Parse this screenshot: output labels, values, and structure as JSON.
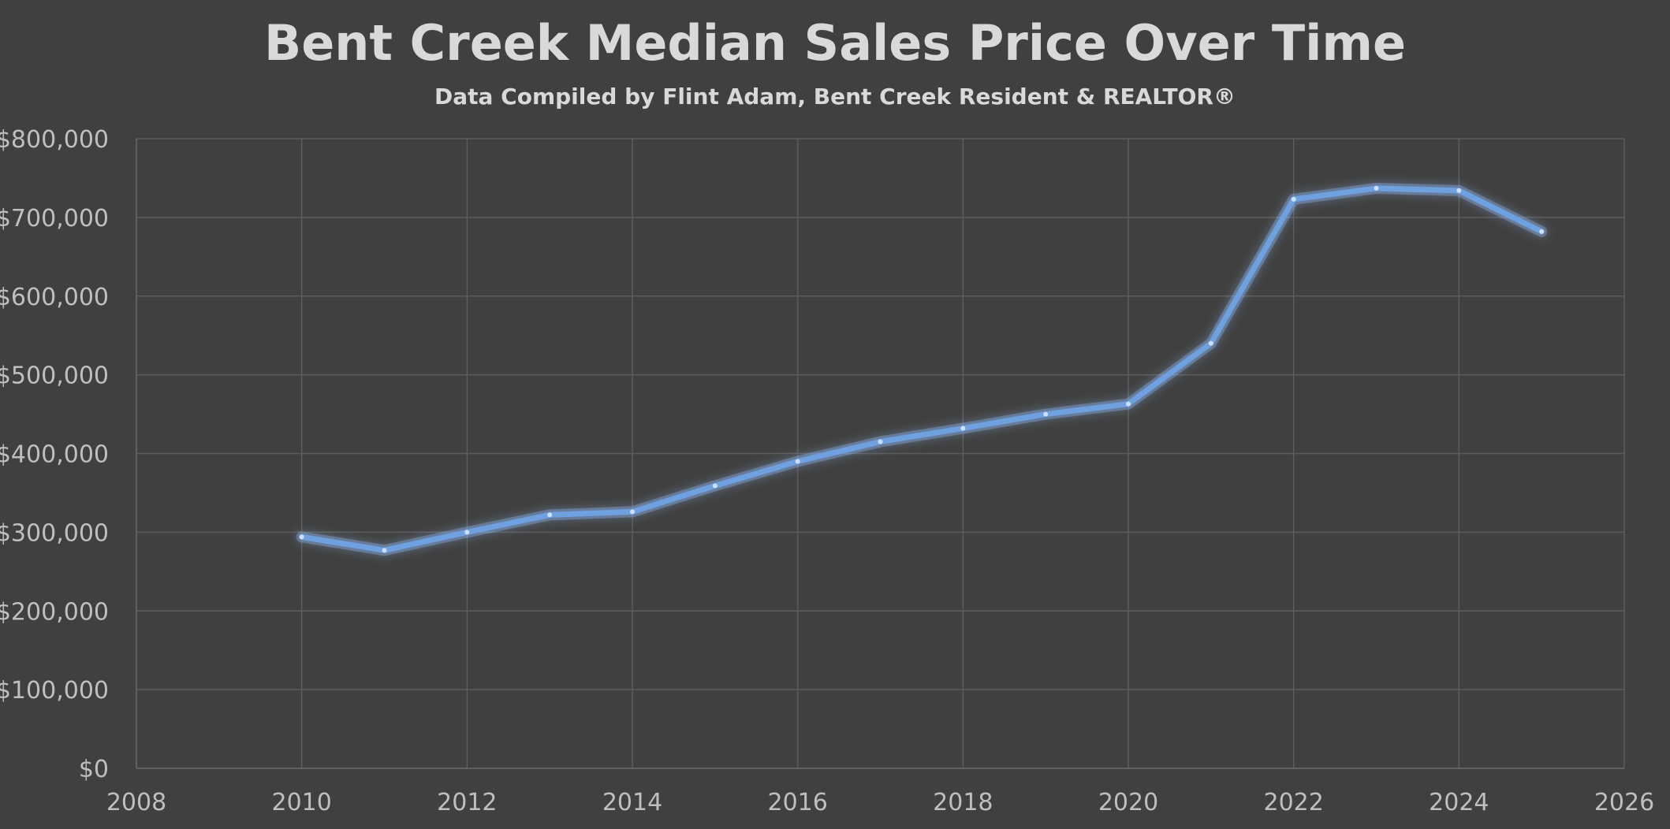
{
  "colors": {
    "background": "#404040",
    "plot_background": "#404040",
    "gridline": "#5c5c5c",
    "text": "#d9d9d9",
    "tick_text": "#bfbfbf",
    "series_line": "#6fa0e0",
    "series_glow": "#8fbaf5"
  },
  "chart_data": {
    "type": "line",
    "title": "Bent Creek Median Sales Price Over Time",
    "subtitle": "Data Compiled by Flint Adam, Bent Creek Resident & REALTOR®",
    "xlabel": "",
    "ylabel": "",
    "xlim": [
      2008,
      2026
    ],
    "ylim": [
      0,
      800000
    ],
    "x_ticks": [
      2008,
      2010,
      2012,
      2014,
      2016,
      2018,
      2020,
      2022,
      2024,
      2026
    ],
    "x_tick_labels": [
      "2008",
      "2010",
      "2012",
      "2014",
      "2016",
      "2018",
      "2020",
      "2022",
      "2024",
      "2026"
    ],
    "y_ticks": [
      0,
      100000,
      200000,
      300000,
      400000,
      500000,
      600000,
      700000,
      800000
    ],
    "y_tick_labels": [
      "$0",
      "$100,000",
      "$200,000",
      "$300,000",
      "$400,000",
      "$500,000",
      "$600,000",
      "$700,000",
      "$800,000"
    ],
    "grid": true,
    "legend": "none",
    "series": [
      {
        "x": [
          2010,
          2011,
          2012,
          2013,
          2014,
          2015,
          2016,
          2017,
          2018,
          2019,
          2020,
          2021,
          2022,
          2023,
          2024,
          2025
        ],
        "values": [
          294000,
          277000,
          300000,
          322000,
          326000,
          359000,
          390000,
          415000,
          432000,
          450000,
          463000,
          540000,
          723000,
          737000,
          734000,
          682000
        ]
      }
    ]
  }
}
